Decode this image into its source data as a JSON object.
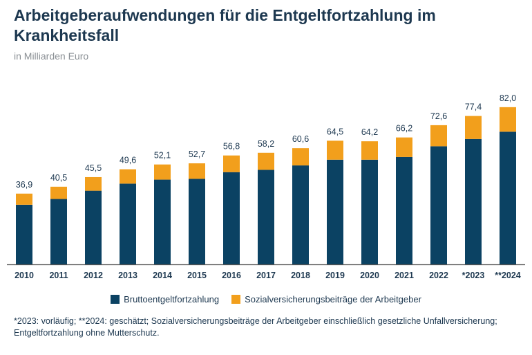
{
  "chart_data": {
    "type": "bar",
    "stacked": true,
    "title": "Arbeitgeberaufwendungen für die Entgeltfortzahlung im Krankheitsfall",
    "subtitle": "in Milliarden Euro",
    "categories": [
      "2010",
      "2011",
      "2012",
      "2013",
      "2014",
      "2015",
      "2016",
      "2017",
      "2018",
      "2019",
      "2020",
      "2021",
      "2022",
      "*2023",
      "**2024"
    ],
    "series": [
      {
        "name": "Bruttoentgeltfortzahlung",
        "color": "#0b4263",
        "values": [
          31.1,
          34.1,
          38.4,
          42.1,
          44.2,
          44.6,
          48.1,
          49.3,
          51.6,
          54.6,
          54.6,
          56.0,
          61.6,
          65.4,
          69.2
        ]
      },
      {
        "name": "Sozialversicherungsbeiträge der Arbeitgeber",
        "color": "#f29f1c",
        "values": [
          5.8,
          6.4,
          7.1,
          7.5,
          7.9,
          8.1,
          8.7,
          8.9,
          9.0,
          9.9,
          9.6,
          10.2,
          11.0,
          12.0,
          12.8
        ]
      }
    ],
    "totals": [
      36.9,
      40.5,
      45.5,
      49.6,
      52.1,
      52.7,
      56.8,
      58.2,
      60.6,
      64.5,
      64.2,
      66.2,
      72.6,
      77.4,
      82.0
    ],
    "total_labels": [
      "36,9",
      "40,5",
      "45,5",
      "49,6",
      "52,1",
      "52,7",
      "56,8",
      "58,2",
      "60,6",
      "64,5",
      "64,2",
      "66,2",
      "72,6",
      "77,4",
      "82,0"
    ],
    "ylim": [
      0,
      82
    ],
    "grid": false,
    "legend": "bottom",
    "footnote": "*2023: vorläufig; **2024: geschätzt; Sozialversicherungsbeiträge der Arbeitgeber einschließlich gesetzliche Unfallversicherung; Entgeltfortzahlung ohne Mutterschutz."
  }
}
